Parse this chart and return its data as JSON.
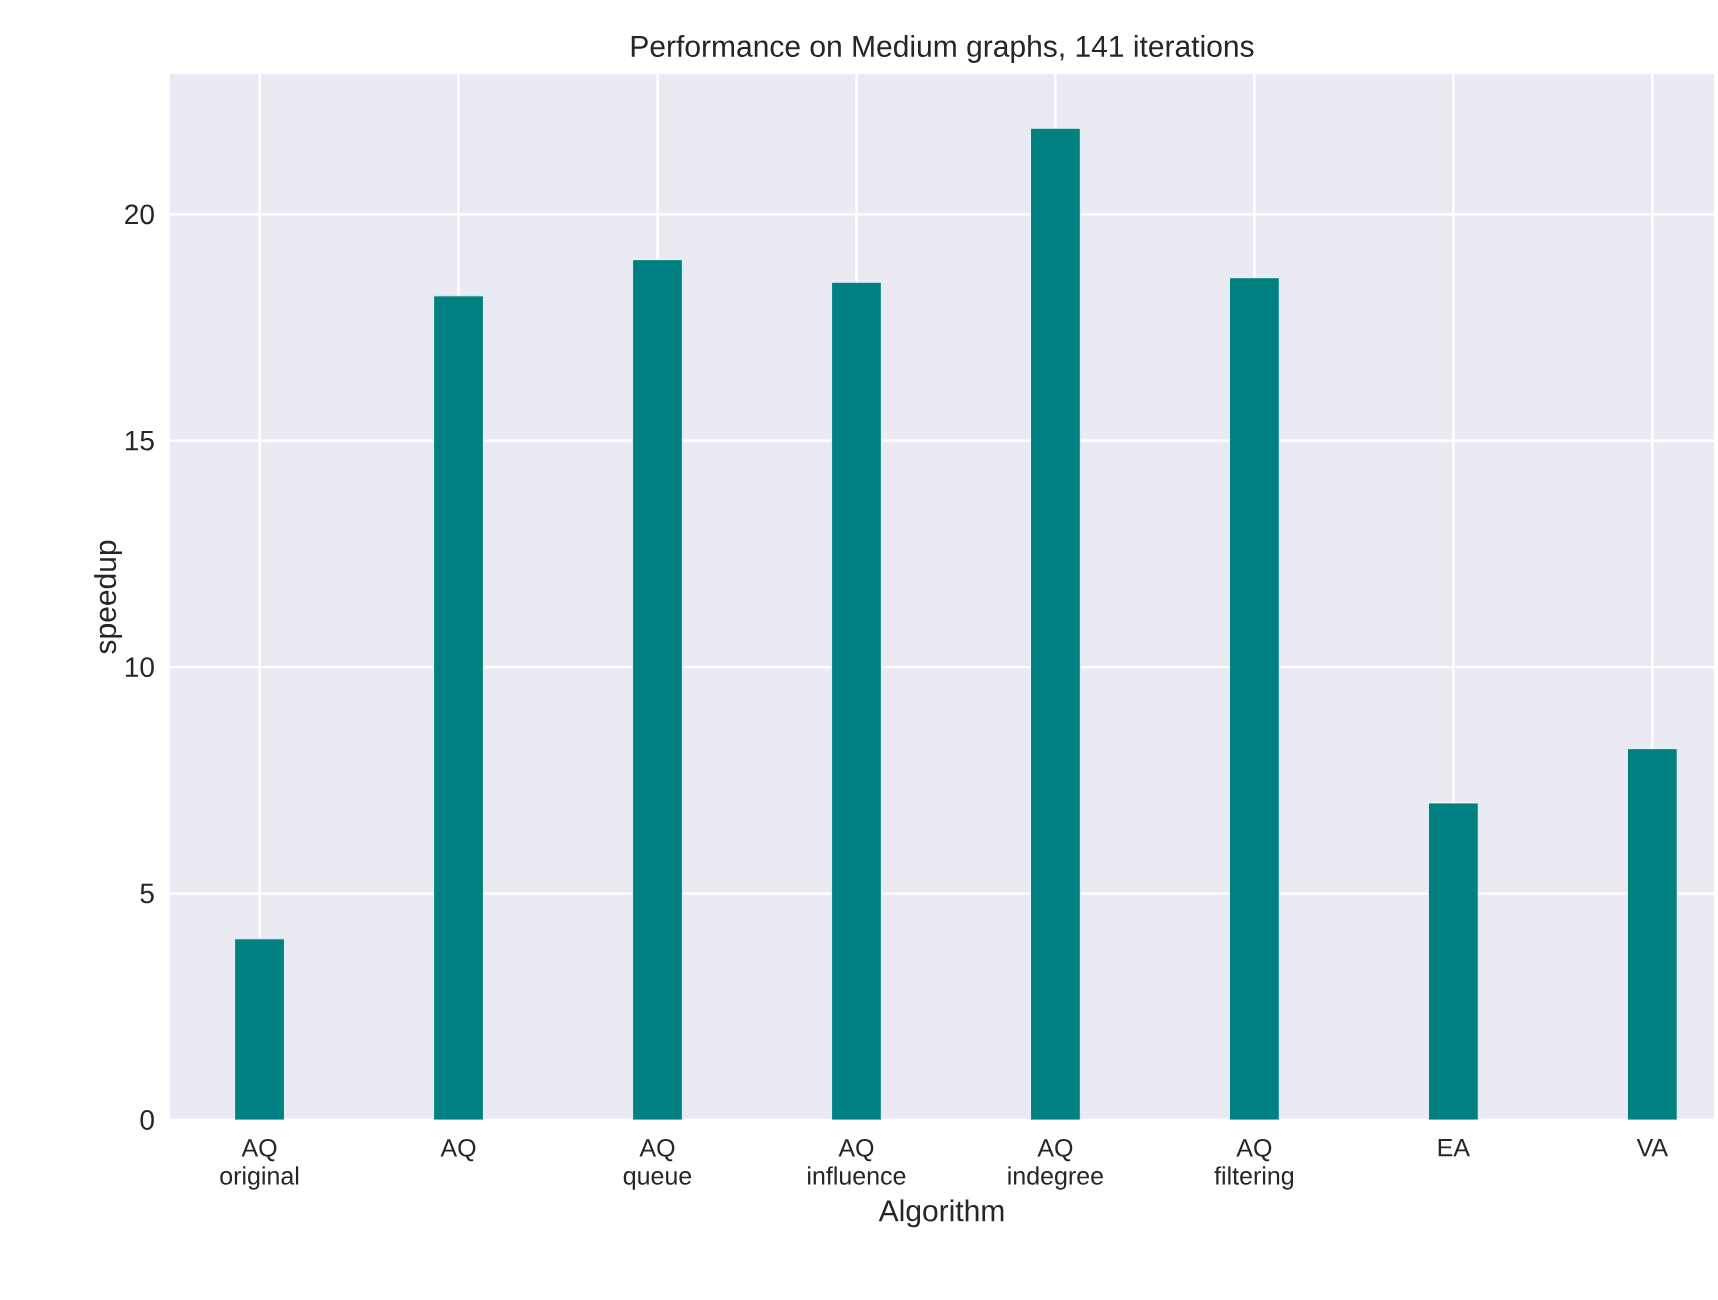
{
  "chart_data": {
    "type": "bar",
    "title": "Performance on Medium graphs, 141 iterations",
    "xlabel": "Algorithm",
    "ylabel": "speedup",
    "categories": [
      "AQ original",
      "AQ",
      "AQ queue",
      "AQ influence",
      "AQ indegree",
      "AQ filtering",
      "EA",
      "VA"
    ],
    "values": [
      4.0,
      18.2,
      19.0,
      18.5,
      21.9,
      18.6,
      7.0,
      8.2
    ],
    "color": "#008080",
    "ylim": [
      0,
      23.1
    ],
    "yticks": [
      0,
      5,
      10,
      15,
      20
    ],
    "grid": true
  }
}
